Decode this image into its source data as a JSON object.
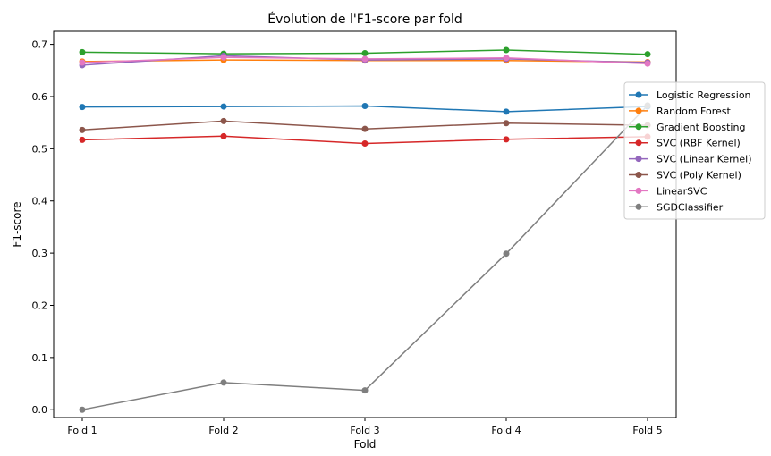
{
  "chart_data": {
    "type": "line",
    "title": "Évolution de l'F1-score par fold",
    "xlabel": "Fold",
    "ylabel": "F1-score",
    "categories": [
      "Fold 1",
      "Fold 2",
      "Fold 3",
      "Fold 4",
      "Fold 5"
    ],
    "ylim": [
      -0.015,
      0.725
    ],
    "yticks": [
      0.0,
      0.1,
      0.2,
      0.3,
      0.4,
      0.5,
      0.6,
      0.7
    ],
    "ytick_labels": [
      "0.0",
      "0.1",
      "0.2",
      "0.3",
      "0.4",
      "0.5",
      "0.6",
      "0.7"
    ],
    "grid": false,
    "legend_position": "right",
    "series": [
      {
        "name": "Logistic Regression",
        "color": "#1f77b4",
        "values": [
          0.58,
          0.581,
          0.582,
          0.571,
          0.581
        ]
      },
      {
        "name": "Random Forest",
        "color": "#ff7f0e",
        "values": [
          0.667,
          0.67,
          0.669,
          0.669,
          0.666
        ]
      },
      {
        "name": "Gradient Boosting",
        "color": "#2ca02c",
        "values": [
          0.685,
          0.682,
          0.683,
          0.689,
          0.681
        ]
      },
      {
        "name": "SVC (RBF Kernel)",
        "color": "#d62728",
        "values": [
          0.517,
          0.524,
          0.51,
          0.518,
          0.523
        ]
      },
      {
        "name": "SVC (Linear Kernel)",
        "color": "#9467bd",
        "values": [
          0.66,
          0.678,
          0.67,
          0.672,
          0.665
        ]
      },
      {
        "name": "SVC (Poly Kernel)",
        "color": "#8c564b",
        "values": [
          0.536,
          0.553,
          0.538,
          0.549,
          0.545
        ]
      },
      {
        "name": "LinearSVC",
        "color": "#e377c2",
        "values": [
          0.665,
          0.675,
          0.672,
          0.674,
          0.663
        ]
      },
      {
        "name": "SGDClassifier",
        "color": "#7f7f7f",
        "values": [
          0.0,
          0.052,
          0.037,
          0.299,
          0.583
        ]
      }
    ]
  }
}
